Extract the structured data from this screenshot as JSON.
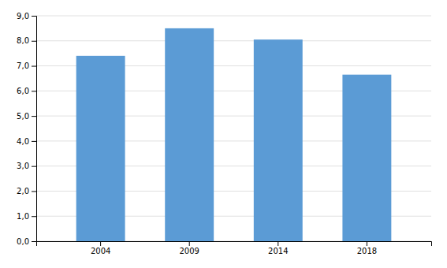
{
  "chart_data": {
    "type": "bar",
    "categories": [
      "2004",
      "2009",
      "2014",
      "2018"
    ],
    "values": [
      7.4,
      8.5,
      8.05,
      6.65
    ],
    "color": "#5b9bd5",
    "ylim": [
      0,
      9.0
    ],
    "yticks": [
      {
        "value": 0.0,
        "label": "0,0"
      },
      {
        "value": 1.0,
        "label": "1,0"
      },
      {
        "value": 2.0,
        "label": "2,0"
      },
      {
        "value": 3.0,
        "label": "3,0"
      },
      {
        "value": 4.0,
        "label": "4,0"
      },
      {
        "value": 5.0,
        "label": "5,0"
      },
      {
        "value": 6.0,
        "label": "6,0"
      },
      {
        "value": 7.0,
        "label": "7,0"
      },
      {
        "value": 8.0,
        "label": "8,0"
      },
      {
        "value": 9.0,
        "label": "9,0"
      }
    ],
    "grid": true
  }
}
